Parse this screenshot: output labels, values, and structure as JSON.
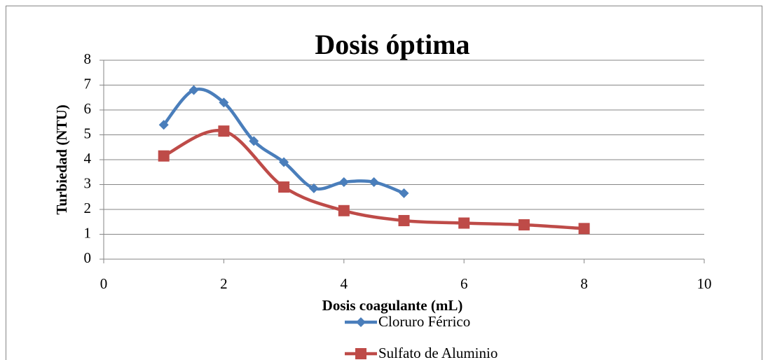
{
  "chart_data": {
    "type": "line",
    "smooth": true,
    "title": "Dosis óptima",
    "xlabel": "Dosis coagulante (mL)",
    "ylabel": "Turbiedad (NTU)",
    "xlim": [
      0,
      10
    ],
    "xticks": [
      0,
      2,
      4,
      6,
      8,
      10
    ],
    "ylim": [
      0,
      8
    ],
    "yticks": [
      0,
      1,
      2,
      3,
      4,
      5,
      6,
      7,
      8
    ],
    "grid": true,
    "legend": "bottom",
    "series": [
      {
        "name": "Cloruro Férrico",
        "color": "#4a7ebb",
        "marker": "diamond",
        "x": [
          1,
          1.5,
          2,
          2.5,
          3,
          3.5,
          4,
          4.5,
          5
        ],
        "values": [
          5.4,
          6.8,
          6.3,
          4.75,
          3.9,
          2.85,
          3.1,
          3.1,
          2.65
        ]
      },
      {
        "name": "Sulfato de Aluminio",
        "color": "#be4b48",
        "marker": "square",
        "x": [
          1,
          2,
          3,
          4,
          5,
          6,
          7,
          8
        ],
        "values": [
          4.15,
          5.15,
          2.9,
          1.95,
          1.55,
          1.45,
          1.38,
          1.23
        ]
      }
    ]
  }
}
